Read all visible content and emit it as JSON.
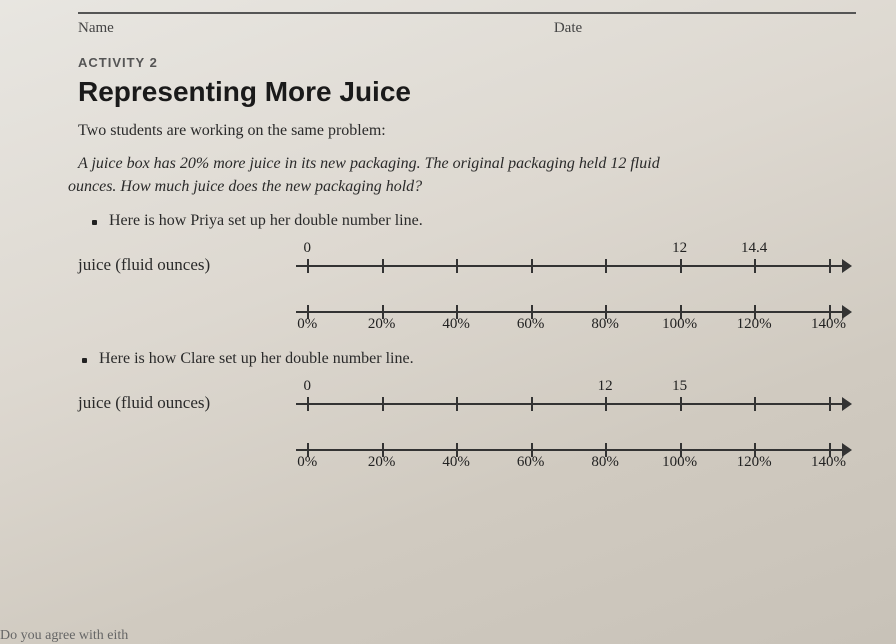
{
  "header": {
    "name_label": "Name",
    "date_label": "Date"
  },
  "activity_label": "ACTIVITY 2",
  "title": "Representing More Juice",
  "intro": "Two students are working on the same problem:",
  "problem_line1": "A juice box has 20% more juice in its new packaging. The original packaging held 12 fluid",
  "problem_line2": "ounces. How much juice does the new packaging hold?",
  "priya_bullet": "Here is how Priya set up her double number line.",
  "clare_bullet": "Here is how Clare set up her double number line.",
  "axis_label": "juice (fluid ounces)",
  "numberline": {
    "tick_positions_pct": [
      2,
      15.3,
      28.6,
      41.9,
      55.2,
      68.5,
      81.8,
      95.1
    ],
    "pct_labels": [
      "0%",
      "20%",
      "40%",
      "60%",
      "80%",
      "100%",
      "120%",
      "140%"
    ]
  },
  "priya": {
    "top_values": [
      {
        "idx": 0,
        "text": "0"
      },
      {
        "idx": 5,
        "text": "12"
      },
      {
        "idx": 6,
        "text": "14.4"
      }
    ]
  },
  "clare": {
    "top_values": [
      {
        "idx": 0,
        "text": "0"
      },
      {
        "idx": 4,
        "text": "12"
      },
      {
        "idx": 5,
        "text": "15"
      }
    ]
  },
  "cutoff": "Do you agree with eith"
}
